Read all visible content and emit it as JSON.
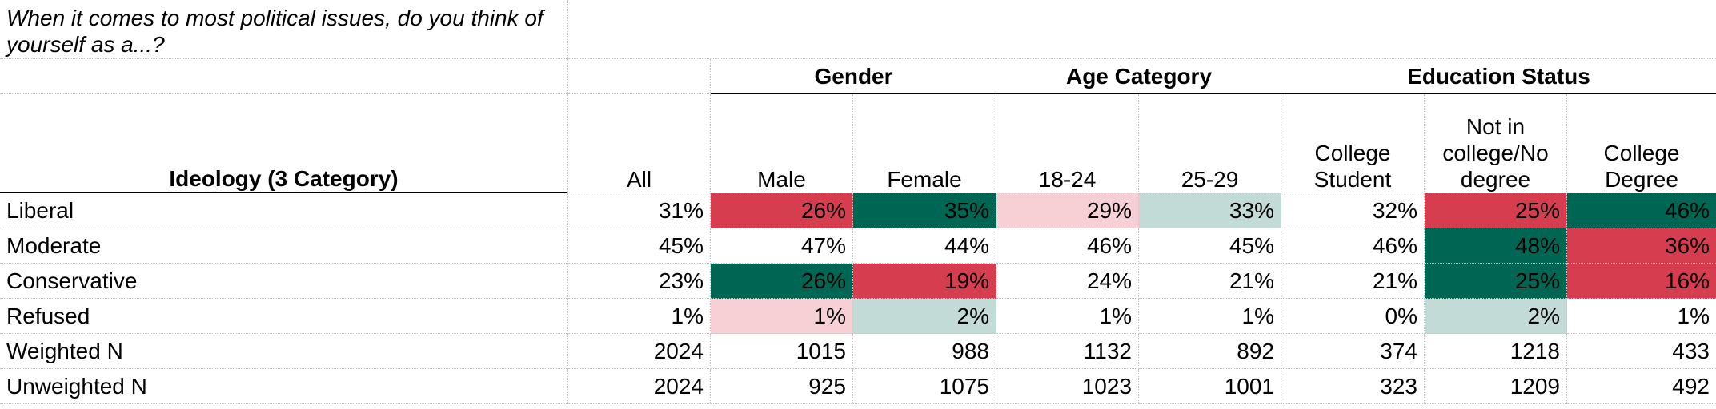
{
  "question": "When it comes to most political issues, do you think of yourself as a...?",
  "groups": {
    "gender": "Gender",
    "age": "Age Category",
    "education": "Education Status"
  },
  "row_header": "Ideology (3 Category)",
  "columns": [
    "All",
    "Male",
    "Female",
    "18-24",
    "25-29",
    "College Student",
    "Not in college/No degree",
    "College Degree"
  ],
  "rows": [
    {
      "label": "Liberal",
      "values": [
        "31%",
        "26%",
        "35%",
        "29%",
        "33%",
        "32%",
        "25%",
        "46%"
      ]
    },
    {
      "label": "Moderate",
      "values": [
        "45%",
        "47%",
        "44%",
        "46%",
        "45%",
        "46%",
        "48%",
        "36%"
      ]
    },
    {
      "label": "Conservative",
      "values": [
        "23%",
        "26%",
        "19%",
        "24%",
        "21%",
        "21%",
        "25%",
        "16%"
      ]
    },
    {
      "label": "Refused",
      "values": [
        "1%",
        "1%",
        "2%",
        "1%",
        "1%",
        "0%",
        "2%",
        "1%"
      ]
    },
    {
      "label": "Weighted N",
      "values": [
        "2024",
        "1015",
        "988",
        "1132",
        "892",
        "374",
        "1218",
        "433"
      ]
    },
    {
      "label": "Unweighted N",
      "values": [
        "2024",
        "925",
        "1075",
        "1023",
        "1001",
        "323",
        "1209",
        "492"
      ]
    }
  ],
  "colors": {
    "strong_red": "#d63e50",
    "light_red": "#f6d0d5",
    "strong_green": "#006654",
    "light_green": "#c2dbd6"
  },
  "cell_fills": [
    [
      null,
      "strong_red",
      "strong_green",
      "light_red",
      "light_green",
      null,
      "strong_red",
      "strong_green"
    ],
    [
      null,
      null,
      null,
      null,
      null,
      null,
      "strong_green",
      "strong_red"
    ],
    [
      null,
      "strong_green",
      "strong_red",
      null,
      null,
      null,
      "strong_green",
      "strong_red"
    ],
    [
      null,
      "light_red",
      "light_green",
      null,
      null,
      null,
      "light_green",
      null
    ],
    [
      null,
      null,
      null,
      null,
      null,
      null,
      null,
      null
    ],
    [
      null,
      null,
      null,
      null,
      null,
      null,
      null,
      null
    ]
  ]
}
